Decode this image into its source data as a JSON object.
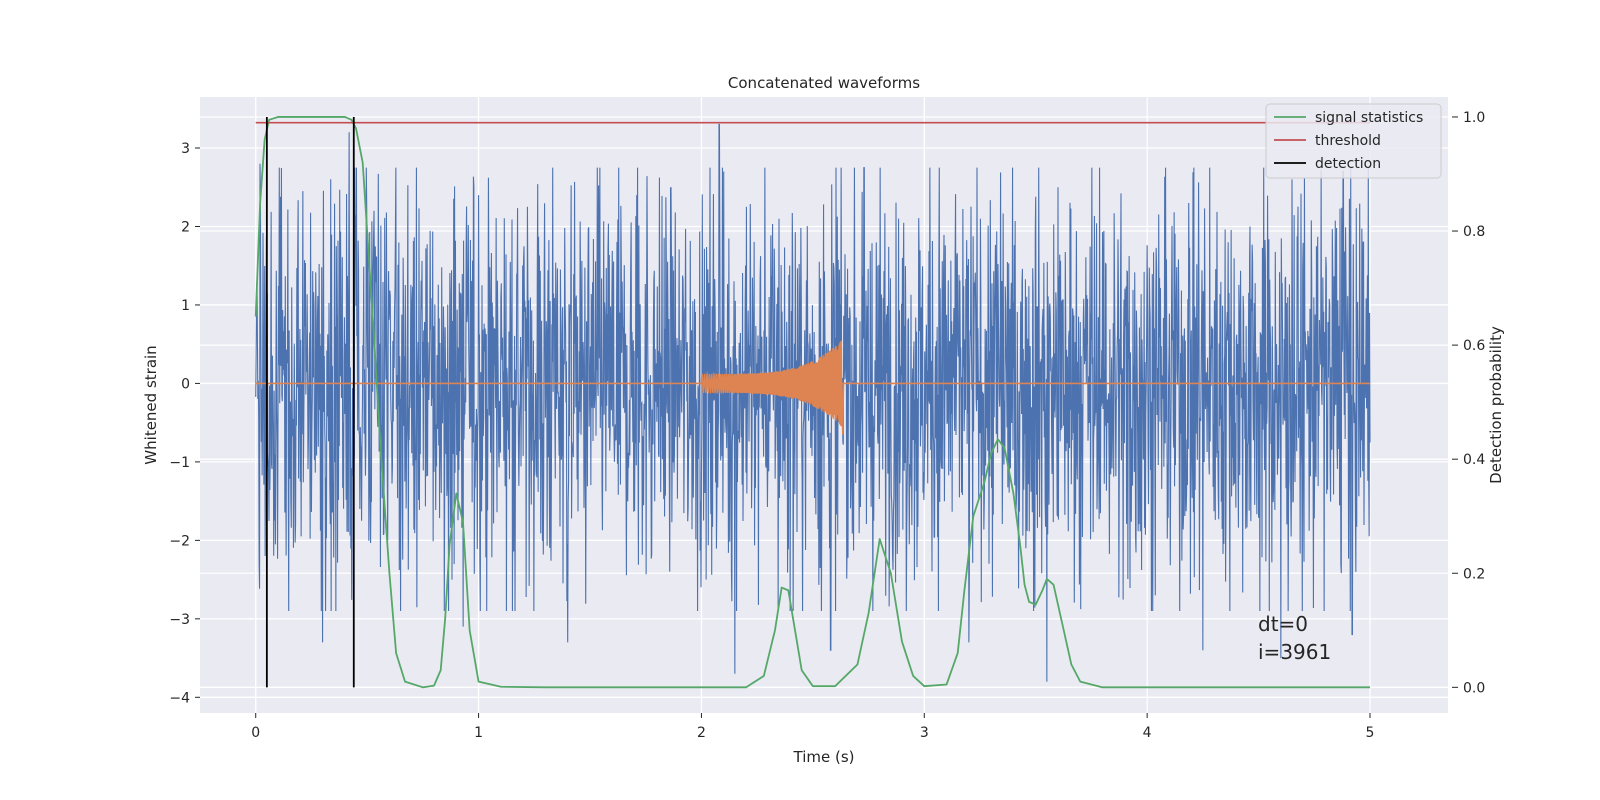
{
  "chart_data": {
    "type": "line",
    "title": "Concatenated waveforms",
    "xlabel": "Time (s)",
    "ylabel": "Whitened strain",
    "y2label": "Detection probability",
    "xlim": [
      -0.25,
      5.35
    ],
    "ylim": [
      -4.2,
      3.65
    ],
    "y2lim": [
      -0.045,
      1.035
    ],
    "xticks": [
      0,
      1,
      2,
      3,
      4,
      5
    ],
    "yticks": [
      -4,
      -3,
      -2,
      -1,
      0,
      1,
      2,
      3
    ],
    "y2ticks": [
      0.0,
      0.2,
      0.4,
      0.6,
      0.8,
      1.0
    ],
    "xtick_labels": [
      "0",
      "1",
      "2",
      "3",
      "4",
      "5"
    ],
    "ytick_labels": [
      "−4",
      "−3",
      "−2",
      "−1",
      "0",
      "1",
      "2",
      "3"
    ],
    "y2tick_labels": [
      "0.0",
      "0.2",
      "0.4",
      "0.6",
      "0.8",
      "1.0"
    ],
    "grid": true,
    "legend_position": "top-right",
    "colors": {
      "background": "#eaeaf2",
      "strain": "#4c72b0",
      "injection": "#dd8452",
      "signal": "#55a868",
      "threshold": "#c44e52",
      "detection": "#000000"
    },
    "series": [
      {
        "name": "",
        "role": "whitened-strain",
        "x_range": [
          0,
          5
        ],
        "typical_amplitude": 1.2,
        "peak_extremes": [
          [
            0.02,
            2.8
          ],
          [
            0.05,
            -2.3
          ],
          [
            0.3,
            -3.3
          ],
          [
            0.42,
            3.2
          ],
          [
            0.88,
            -2.5
          ],
          [
            0.93,
            -3.1
          ],
          [
            1.0,
            2.4
          ],
          [
            1.4,
            -3.3
          ],
          [
            2.08,
            3.3
          ],
          [
            2.1,
            2.7
          ],
          [
            2.15,
            -3.7
          ],
          [
            2.58,
            -3.4
          ],
          [
            3.2,
            -3.3
          ],
          [
            3.55,
            -3.8
          ],
          [
            3.6,
            2.5
          ],
          [
            4.25,
            -3.4
          ],
          [
            4.6,
            -3.5
          ],
          [
            4.65,
            2.6
          ],
          [
            4.88,
            2.7
          ],
          [
            4.92,
            -3.2
          ],
          [
            4.97,
            1.8
          ]
        ]
      },
      {
        "name": "",
        "role": "injected-chirp",
        "start": 2.0,
        "end": 2.63,
        "amplitude_start": 0.12,
        "amplitude_peak": 0.55
      },
      {
        "name": "signal statistics",
        "axis": "right",
        "x": [
          0.0,
          0.02,
          0.04,
          0.06,
          0.1,
          0.2,
          0.3,
          0.4,
          0.43,
          0.45,
          0.48,
          0.5,
          0.53,
          0.56,
          0.6,
          0.63,
          0.67,
          0.75,
          0.8,
          0.83,
          0.85,
          0.87,
          0.9,
          0.93,
          0.96,
          1.0,
          1.1,
          1.3,
          1.6,
          2.0,
          2.2,
          2.28,
          2.33,
          2.36,
          2.39,
          2.42,
          2.45,
          2.5,
          2.6,
          2.7,
          2.75,
          2.8,
          2.85,
          2.9,
          2.95,
          3.0,
          3.1,
          3.15,
          3.18,
          3.22,
          3.27,
          3.3,
          3.33,
          3.36,
          3.4,
          3.43,
          3.45,
          3.47,
          3.5,
          3.53,
          3.55,
          3.58,
          3.62,
          3.66,
          3.7,
          3.8,
          4.0,
          4.5,
          5.0
        ],
        "y": [
          0.65,
          0.85,
          0.96,
          0.995,
          1.0,
          1.0,
          1.0,
          1.0,
          0.995,
          0.98,
          0.92,
          0.8,
          0.62,
          0.42,
          0.2,
          0.06,
          0.01,
          0.0,
          0.003,
          0.03,
          0.12,
          0.25,
          0.34,
          0.29,
          0.1,
          0.01,
          0.001,
          0.0,
          0.0,
          0.0,
          0.0,
          0.02,
          0.1,
          0.175,
          0.17,
          0.1,
          0.03,
          0.002,
          0.002,
          0.04,
          0.13,
          0.26,
          0.2,
          0.08,
          0.02,
          0.002,
          0.005,
          0.06,
          0.17,
          0.3,
          0.36,
          0.41,
          0.435,
          0.42,
          0.34,
          0.25,
          0.18,
          0.15,
          0.145,
          0.17,
          0.19,
          0.18,
          0.11,
          0.04,
          0.01,
          0.0,
          0.0,
          0.0,
          0.0
        ]
      },
      {
        "name": "threshold",
        "axis": "right",
        "x": [
          0,
          5
        ],
        "y": [
          0.99,
          0.99
        ]
      },
      {
        "name": "detection",
        "axis": "right",
        "vlines": [
          0.05,
          0.44
        ],
        "y_range": [
          0.0,
          1.0
        ]
      }
    ],
    "annotations": [
      "dt=0",
      "i=3961"
    ]
  }
}
